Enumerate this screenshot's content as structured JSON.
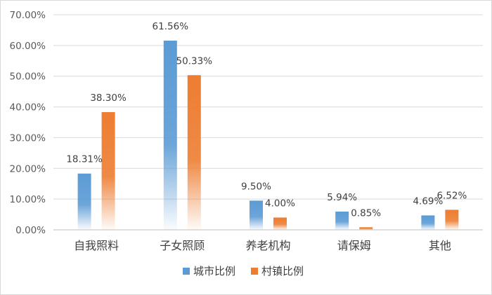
{
  "chart_data": {
    "type": "bar",
    "categories": [
      "自我照料",
      "子女照顾",
      "养老机构",
      "请保姆",
      "其他"
    ],
    "series": [
      {
        "name": "城市比例",
        "values": [
          18.31,
          61.56,
          9.5,
          5.94,
          4.69
        ],
        "labels": [
          "18.31%",
          "61.56%",
          "9.50%",
          "5.94%",
          "4.69%"
        ],
        "color": "#5b9bd5"
      },
      {
        "name": "村镇比例",
        "values": [
          38.3,
          50.33,
          4.0,
          0.85,
          6.52
        ],
        "labels": [
          "38.30%",
          "50.33%",
          "4.00%",
          "0.85%",
          "6.52%"
        ],
        "color": "#ed7d31"
      }
    ],
    "ylim": [
      0,
      70
    ],
    "yticks": [
      0,
      10,
      20,
      30,
      40,
      50,
      60,
      70
    ],
    "ytick_labels": [
      "0.00%",
      "10.00%",
      "20.00%",
      "30.00%",
      "40.00%",
      "50.00%",
      "60.00%",
      "70.00%"
    ],
    "grid": true,
    "legend_position": "bottom",
    "bar_style": "gradient-fade-to-white"
  }
}
